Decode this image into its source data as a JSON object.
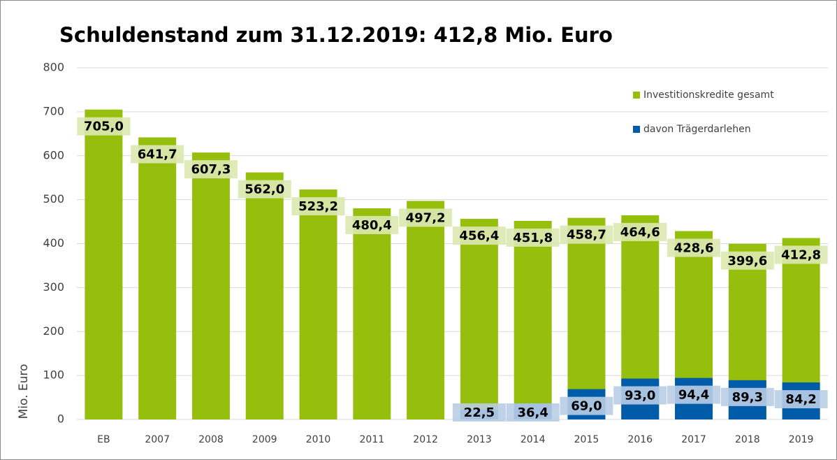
{
  "chart_data": {
    "type": "bar",
    "title": "Schuldenstand zum 31.12.2019: 412,8 Mio. Euro",
    "y_label": "Mio. Euro",
    "categories": [
      "EB",
      "2007",
      "2008",
      "2009",
      "2010",
      "2011",
      "2012",
      "2013",
      "2014",
      "2015",
      "2016",
      "2017",
      "2018",
      "2019"
    ],
    "series": [
      {
        "name": "Investitionskredite gesamt",
        "color": "#96bf0d",
        "label_bg": "#dbe8b0",
        "values": [
          705.0,
          641.7,
          607.3,
          562.0,
          523.2,
          480.4,
          497.2,
          456.4,
          451.8,
          458.7,
          464.6,
          428.6,
          399.6,
          412.8
        ],
        "value_labels": [
          "705,0",
          "641,7",
          "607,3",
          "562,0",
          "523,2",
          "480,4",
          "497,2",
          "456,4",
          "451,8",
          "458,7",
          "464,6",
          "428,6",
          "399,6",
          "412,8"
        ]
      },
      {
        "name": "davon Trägerdarlehen",
        "color": "#005ca9",
        "label_bg": "#b9cde6",
        "values": [
          null,
          null,
          null,
          null,
          null,
          null,
          null,
          22.5,
          36.4,
          69.0,
          93.0,
          94.4,
          89.3,
          84.2
        ],
        "value_labels": [
          null,
          null,
          null,
          null,
          null,
          null,
          null,
          "22,5",
          "36,4",
          "69,0",
          "93,0",
          "94,4",
          "89,3",
          "84,2"
        ]
      }
    ],
    "ylim": [
      0,
      800
    ],
    "yticks": [
      0,
      100,
      200,
      300,
      400,
      500,
      600,
      700,
      800
    ],
    "grid": true,
    "legend": "top-right"
  }
}
